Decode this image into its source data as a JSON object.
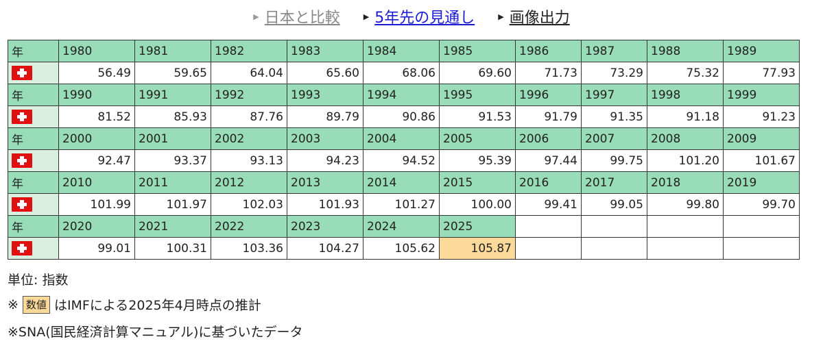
{
  "nav": [
    {
      "label": "日本と比較",
      "state": "inactive"
    },
    {
      "label": "5年先の見通し",
      "state": "active"
    },
    {
      "label": "画像出力",
      "state": "normal"
    }
  ],
  "row_header_label": "年",
  "country_flag": "switzerland-flag-icon",
  "rows": [
    {
      "years": [
        "1980",
        "1981",
        "1982",
        "1983",
        "1984",
        "1985",
        "1986",
        "1987",
        "1988",
        "1989"
      ],
      "values": [
        "56.49",
        "59.65",
        "64.04",
        "65.60",
        "68.06",
        "69.60",
        "71.73",
        "73.29",
        "75.32",
        "77.93"
      ]
    },
    {
      "years": [
        "1990",
        "1991",
        "1992",
        "1993",
        "1994",
        "1995",
        "1996",
        "1997",
        "1998",
        "1999"
      ],
      "values": [
        "81.52",
        "85.93",
        "87.76",
        "89.79",
        "90.86",
        "91.53",
        "91.79",
        "91.35",
        "91.18",
        "91.23"
      ]
    },
    {
      "years": [
        "2000",
        "2001",
        "2002",
        "2003",
        "2004",
        "2005",
        "2006",
        "2007",
        "2008",
        "2009"
      ],
      "values": [
        "92.47",
        "93.37",
        "93.13",
        "94.23",
        "94.52",
        "95.39",
        "97.44",
        "99.75",
        "101.20",
        "101.67"
      ]
    },
    {
      "years": [
        "2010",
        "2011",
        "2012",
        "2013",
        "2014",
        "2015",
        "2016",
        "2017",
        "2018",
        "2019"
      ],
      "values": [
        "101.99",
        "101.97",
        "102.03",
        "101.93",
        "101.27",
        "100.00",
        "99.41",
        "99.05",
        "99.80",
        "99.70"
      ]
    },
    {
      "years": [
        "2020",
        "2021",
        "2022",
        "2023",
        "2024",
        "2025"
      ],
      "values": [
        "99.01",
        "100.31",
        "103.36",
        "104.27",
        "105.62",
        "105.87"
      ],
      "estimated_from_year": "2025"
    }
  ],
  "colors": {
    "header_green": "#99dcb8",
    "flag_cell": "#d9efdf",
    "estimate_highlight": "#fbd998",
    "active_link": "#1b1bd6"
  },
  "notes": {
    "unit": "単位: 指数",
    "estimate_prefix": "※",
    "estimate_badge": "数値",
    "estimate_text": "はIMFによる2025年4月時点の推計",
    "sna": "※SNA(国民経済計算マニュアル)に基づいたデータ"
  }
}
